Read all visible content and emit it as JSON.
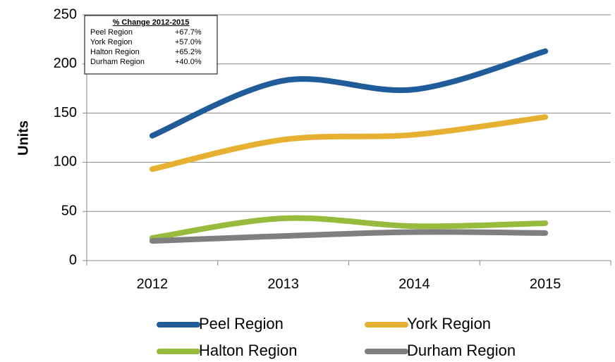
{
  "chart_data": {
    "type": "line",
    "ylabel": "Units",
    "categories": [
      "2012",
      "2013",
      "2014",
      "2015"
    ],
    "series": [
      {
        "name": "Peel Region",
        "color": "#1f5c99",
        "values": [
          127,
          183,
          174,
          213
        ]
      },
      {
        "name": "York Region",
        "color": "#e6b133",
        "values": [
          93,
          123,
          128,
          146
        ]
      },
      {
        "name": "Halton Region",
        "color": "#97bb3d",
        "values": [
          23,
          43,
          35,
          38
        ]
      },
      {
        "name": "Durham Region",
        "color": "#7f7f7f",
        "values": [
          20,
          25,
          29,
          28
        ]
      }
    ],
    "ylim": [
      0,
      250
    ],
    "yticks": [
      0,
      50,
      100,
      150,
      200,
      250
    ],
    "grid": true,
    "annotation": {
      "title": "% Change 2012-2015",
      "rows": [
        [
          "Peel Region",
          "+67.7%"
        ],
        [
          "York Region",
          "+57.0%"
        ],
        [
          "Halton Region",
          "+65.2%"
        ],
        [
          "Durham Region",
          "+40.0%"
        ]
      ]
    }
  }
}
